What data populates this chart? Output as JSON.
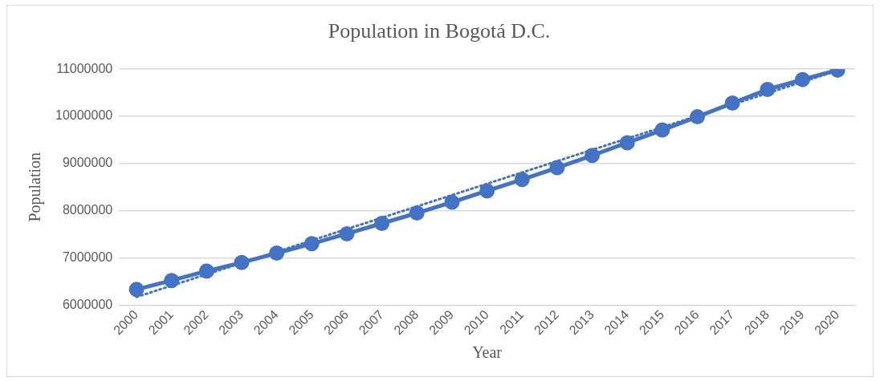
{
  "chart_data": {
    "type": "line",
    "title": "Population in Bogotá D.C.",
    "xlabel": "Year",
    "ylabel": "Population",
    "categories": [
      "2000",
      "2001",
      "2002",
      "2003",
      "2004",
      "2005",
      "2006",
      "2007",
      "2008",
      "2009",
      "2010",
      "2011",
      "2012",
      "2013",
      "2014",
      "2015",
      "2016",
      "2017",
      "2018",
      "2019",
      "2020"
    ],
    "series": [
      {
        "color": "#4472c4",
        "marker": "circle",
        "line_style": "solid",
        "values": [
          6330000,
          6520000,
          6720000,
          6900000,
          7100000,
          7300000,
          7510000,
          7730000,
          7950000,
          8180000,
          8420000,
          8660000,
          8910000,
          9170000,
          9440000,
          9710000,
          9990000,
          10280000,
          10570000,
          10780000,
          10980000
        ]
      },
      {
        "type": "line",
        "color": "#4472c4",
        "marker": "none",
        "line_style": "dotted",
        "values": [
          6170000,
          6410000,
          6650000,
          6890000,
          7130000,
          7370000,
          7610000,
          7850000,
          8090000,
          8330000,
          8570000,
          8810000,
          9050000,
          9290000,
          9530000,
          9770000,
          10010000,
          10250000,
          10490000,
          10730000,
          10970000
        ]
      }
    ],
    "ylim": [
      6000000,
      11000000
    ],
    "yticks": [
      6000000,
      7000000,
      8000000,
      9000000,
      10000000,
      11000000
    ],
    "grid": "y",
    "legend": false
  }
}
